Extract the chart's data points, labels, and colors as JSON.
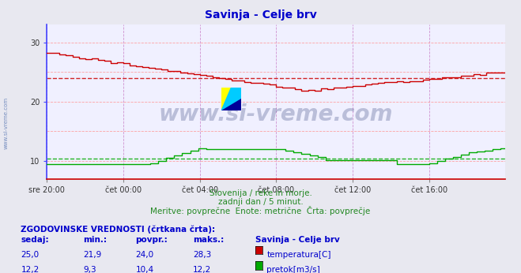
{
  "title": "Savinja - Celje brv",
  "title_color": "#0000cc",
  "background_color": "#e8e8f0",
  "plot_bg_color": "#f0f0ff",
  "grid_color_h": "#ff9999",
  "grid_color_v": "#cc99cc",
  "watermark_text": "www.si-vreme.com",
  "watermark_color": "#1a2a6a",
  "watermark_alpha": 0.25,
  "subtitle_lines": [
    "Slovenija / reke in morje.",
    "zadnji dan / 5 minut.",
    "Meritve: povprečne  Enote: metrične  Črta: povprečje"
  ],
  "subtitle_color": "#228822",
  "legend_title": "ZGODOVINSKE VREDNOSTI (črtkana črta):",
  "legend_headers": [
    "sedaj:",
    "min.:",
    "povpr.:",
    "maks.:",
    "Savinja - Celje brv"
  ],
  "legend_rows": [
    [
      "25,0",
      "21,9",
      "24,0",
      "28,3",
      "temperatura[C]",
      "#cc0000"
    ],
    [
      "12,2",
      "9,3",
      "10,4",
      "12,2",
      "pretok[m3/s]",
      "#00aa00"
    ]
  ],
  "legend_color": "#0000cc",
  "x_tick_labels": [
    "sre 20:00",
    "čet 00:00",
    "čet 04:00",
    "čet 08:00",
    "čet 12:00",
    "čet 16:00"
  ],
  "x_tick_positions": [
    0,
    48,
    96,
    144,
    192,
    240
  ],
  "y_ticks": [
    10,
    20,
    30
  ],
  "ylim": [
    7,
    33
  ],
  "xlim": [
    0,
    288
  ],
  "temp_avg": 24.0,
  "flow_avg": 10.4,
  "temp_color": "#cc0000",
  "flow_color": "#00aa00",
  "left_spine_color": "#4444ff",
  "bottom_spine_color": "#cc0000",
  "side_watermark": "www.si-vreme.com",
  "side_watermark_color": "#4466aa"
}
